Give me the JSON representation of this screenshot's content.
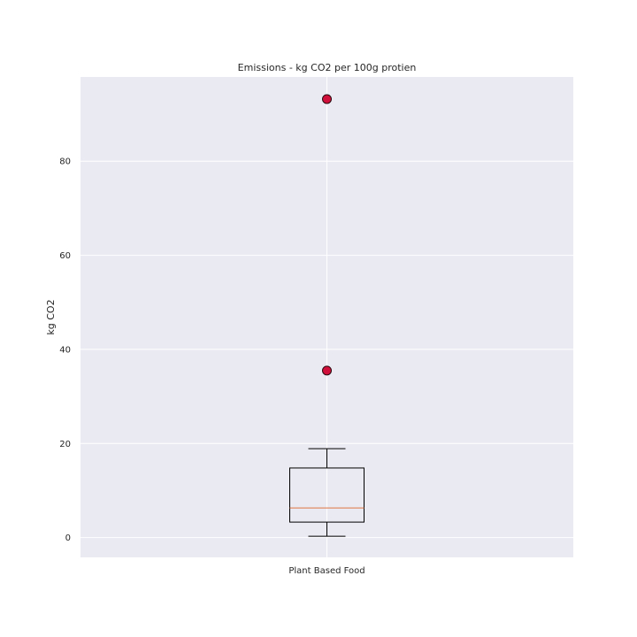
{
  "chart_data": {
    "type": "box",
    "title": "Emissions - kg CO2 per 100g protien",
    "xlabel": "",
    "ylabel": "kg CO2",
    "categories": [
      "Plant Based Food"
    ],
    "ylim": [
      -4.2,
      97.9
    ],
    "yticks": [
      0,
      20,
      40,
      60,
      80
    ],
    "grid": true,
    "boxes": [
      {
        "category": "Plant Based Food",
        "whisker_low": 0.3,
        "q1": 3.3,
        "median": 6.3,
        "q3": 14.8,
        "whisker_high": 18.9,
        "outliers": [
          35.5,
          93.2
        ]
      }
    ],
    "colors": {
      "background": "#eaeaf2",
      "grid": "#ffffff",
      "box": "#000000",
      "median": "#e1733f",
      "outlier_fill": "#d0103a",
      "outlier_edge": "#2b0b10"
    }
  }
}
